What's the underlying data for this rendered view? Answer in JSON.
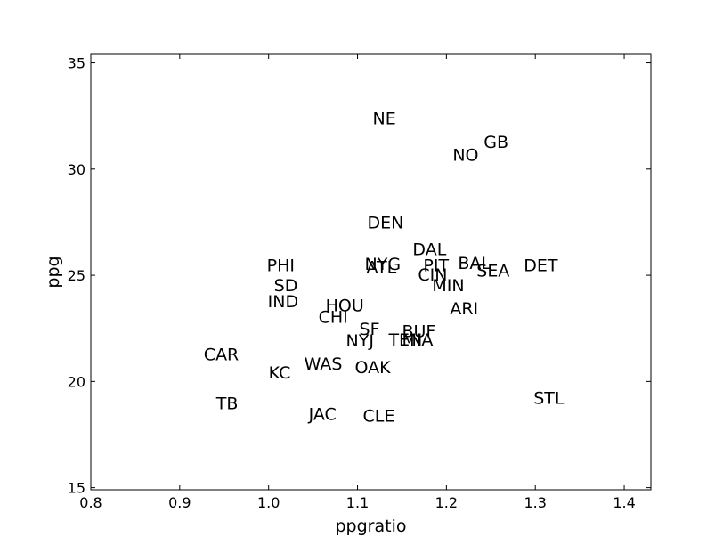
{
  "chart_data": {
    "type": "scatter",
    "xlabel": "ppgratio",
    "ylabel": "ppg",
    "xlim": [
      0.8,
      1.43
    ],
    "ylim": [
      14.9,
      35.4
    ],
    "xticks": [
      0.8,
      0.9,
      1.0,
      1.1,
      1.2,
      1.3,
      1.4
    ],
    "xtick_labels": [
      "0.8",
      "0.9",
      "1.0",
      "1.1",
      "1.2",
      "1.3",
      "1.4"
    ],
    "yticks": [
      15,
      20,
      25,
      30,
      35
    ],
    "ytick_labels": [
      "15",
      "20",
      "25",
      "30",
      "35"
    ],
    "grid": false,
    "colors": {
      "text": "#000000",
      "axes": "#000000",
      "background": "#ffffff"
    },
    "points": [
      {
        "label": "NE",
        "x": 1.117,
        "y": 32.1
      },
      {
        "label": "GB",
        "x": 1.242,
        "y": 31.0
      },
      {
        "label": "NO",
        "x": 1.207,
        "y": 30.4
      },
      {
        "label": "DEN",
        "x": 1.111,
        "y": 27.2
      },
      {
        "label": "DAL",
        "x": 1.162,
        "y": 25.95
      },
      {
        "label": "NYG",
        "x": 1.108,
        "y": 25.25
      },
      {
        "label": "PIT",
        "x": 1.174,
        "y": 25.2
      },
      {
        "label": "BAL",
        "x": 1.213,
        "y": 25.3
      },
      {
        "label": "DET",
        "x": 1.287,
        "y": 25.2
      },
      {
        "label": "PHI",
        "x": 0.998,
        "y": 25.2
      },
      {
        "label": "ATL",
        "x": 1.11,
        "y": 25.1
      },
      {
        "label": "SEA",
        "x": 1.234,
        "y": 24.95
      },
      {
        "label": "CIN",
        "x": 1.168,
        "y": 24.75
      },
      {
        "label": "SD",
        "x": 1.006,
        "y": 24.25
      },
      {
        "label": "MIN",
        "x": 1.184,
        "y": 24.25
      },
      {
        "label": "IND",
        "x": 0.999,
        "y": 23.5
      },
      {
        "label": "HOU",
        "x": 1.064,
        "y": 23.3
      },
      {
        "label": "ARI",
        "x": 1.204,
        "y": 23.15
      },
      {
        "label": "CHI",
        "x": 1.056,
        "y": 22.75
      },
      {
        "label": "SF",
        "x": 1.102,
        "y": 22.2
      },
      {
        "label": "BUF",
        "x": 1.15,
        "y": 22.1
      },
      {
        "label": "MIA",
        "x": 1.15,
        "y": 21.7
      },
      {
        "label": "NYJ",
        "x": 1.087,
        "y": 21.65
      },
      {
        "label": "TEN",
        "x": 1.135,
        "y": 21.7
      },
      {
        "label": "CAR",
        "x": 0.927,
        "y": 21.0
      },
      {
        "label": "WAS",
        "x": 1.04,
        "y": 20.55
      },
      {
        "label": "OAK",
        "x": 1.097,
        "y": 20.4
      },
      {
        "label": "KC",
        "x": 1.0,
        "y": 20.15
      },
      {
        "label": "STL",
        "x": 1.298,
        "y": 18.95
      },
      {
        "label": "TB",
        "x": 0.941,
        "y": 18.7
      },
      {
        "label": "JAC",
        "x": 1.045,
        "y": 18.2
      },
      {
        "label": "CLE",
        "x": 1.106,
        "y": 18.1
      }
    ]
  }
}
